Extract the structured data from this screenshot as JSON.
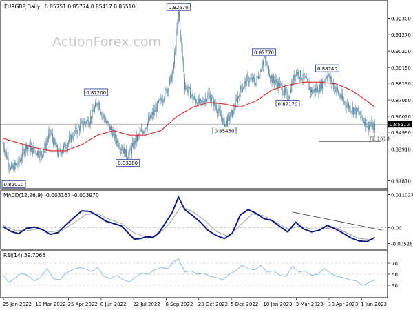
{
  "header": {
    "symbol": "EURGBP,Daily",
    "ohlc": "0.85751 0.85774 0.85417 0.85510"
  },
  "watermark": "ActionForex.com",
  "colors": {
    "candle": "#5b8aa6",
    "ma": "#e0302c",
    "macd_line": "#0a1a8a",
    "signal_line": "#9aa0b0",
    "rsi_line": "#7ab8e6",
    "trendline": "#333333",
    "fe_line": "#555555",
    "grid_dash": "#aaaaaa",
    "label_box": "#1a3a9c",
    "last_price_bg": "#000000"
  },
  "chart_data": [
    {
      "type": "candlestick",
      "title": "EURGBP,Daily",
      "ylim": [
        0.8145,
        0.933
      ],
      "yticks": [
        0.8187,
        0.8391,
        0.8499,
        0.8601,
        0.8706,
        0.8813,
        0.8915,
        0.902,
        0.9127,
        0.923
      ],
      "ytick_labels": [
        "0.81870",
        "0.83910",
        "0.84990",
        "0.86020",
        "0.87060",
        "0.88130",
        "0.89150",
        "0.90200",
        "0.91270",
        "0.92300"
      ],
      "last_price": 0.8551,
      "last_price_label": "0.85510",
      "ma_label": "",
      "price_path": [
        [
          0,
          0.843
        ],
        [
          10,
          0.826
        ],
        [
          20,
          0.83
        ],
        [
          30,
          0.842
        ],
        [
          40,
          0.838
        ],
        [
          50,
          0.836
        ],
        [
          60,
          0.85
        ],
        [
          70,
          0.836
        ],
        [
          80,
          0.842
        ],
        [
          90,
          0.849
        ],
        [
          100,
          0.855
        ],
        [
          110,
          0.858
        ],
        [
          120,
          0.87
        ],
        [
          125,
          0.862
        ],
        [
          130,
          0.857
        ],
        [
          140,
          0.848
        ],
        [
          150,
          0.84
        ],
        [
          158,
          0.8338
        ],
        [
          168,
          0.845
        ],
        [
          178,
          0.852
        ],
        [
          188,
          0.86
        ],
        [
          198,
          0.869
        ],
        [
          208,
          0.878
        ],
        [
          215,
          0.888
        ],
        [
          222,
          0.9267
        ],
        [
          230,
          0.88
        ],
        [
          240,
          0.872
        ],
        [
          250,
          0.868
        ],
        [
          260,
          0.874
        ],
        [
          270,
          0.866
        ],
        [
          280,
          0.8545
        ],
        [
          290,
          0.862
        ],
        [
          300,
          0.877
        ],
        [
          310,
          0.884
        ],
        [
          320,
          0.882
        ],
        [
          330,
          0.8977
        ],
        [
          340,
          0.884
        ],
        [
          350,
          0.88
        ],
        [
          360,
          0.8717
        ],
        [
          370,
          0.889
        ],
        [
          380,
          0.885
        ],
        [
          390,
          0.876
        ],
        [
          400,
          0.878
        ],
        [
          410,
          0.8874
        ],
        [
          420,
          0.878
        ],
        [
          430,
          0.87
        ],
        [
          440,
          0.865
        ],
        [
          450,
          0.862
        ],
        [
          460,
          0.855
        ],
        [
          470,
          0.853
        ]
      ],
      "ma_path": [
        [
          0,
          0.846
        ],
        [
          20,
          0.843
        ],
        [
          40,
          0.84
        ],
        [
          60,
          0.838
        ],
        [
          80,
          0.838
        ],
        [
          100,
          0.842
        ],
        [
          120,
          0.848
        ],
        [
          140,
          0.851
        ],
        [
          160,
          0.848
        ],
        [
          180,
          0.848
        ],
        [
          200,
          0.851
        ],
        [
          220,
          0.86
        ],
        [
          240,
          0.866
        ],
        [
          260,
          0.869
        ],
        [
          280,
          0.868
        ],
        [
          300,
          0.866
        ],
        [
          320,
          0.87
        ],
        [
          340,
          0.877
        ],
        [
          360,
          0.88
        ],
        [
          380,
          0.882
        ],
        [
          400,
          0.882
        ],
        [
          420,
          0.881
        ],
        [
          440,
          0.877
        ],
        [
          460,
          0.87
        ],
        [
          470,
          0.866
        ]
      ],
      "annotations": [
        {
          "label": "0.82010",
          "x": 8,
          "y": 0.8201,
          "anchor": "below"
        },
        {
          "label": "0.87200",
          "x": 118,
          "y": 0.872,
          "anchor": "above"
        },
        {
          "label": "0.83380",
          "x": 158,
          "y": 0.8338,
          "anchor": "below"
        },
        {
          "label": "0.92670",
          "x": 222,
          "y": 0.9267,
          "anchor": "above"
        },
        {
          "label": "0.85450",
          "x": 280,
          "y": 0.8545,
          "anchor": "below"
        },
        {
          "label": "0.89770",
          "x": 330,
          "y": 0.8977,
          "anchor": "above"
        },
        {
          "label": "0.87170",
          "x": 360,
          "y": 0.8717,
          "anchor": "below"
        },
        {
          "label": "0.88740",
          "x": 410,
          "y": 0.8874,
          "anchor": "above"
        }
      ],
      "fe_level": {
        "label": "FE 161.8",
        "value": 0.8439,
        "x_start": 400
      }
    },
    {
      "type": "line",
      "title": "MACD(12,26,9) -0.003167 -0.003970",
      "ylim": [
        -0.0065,
        0.0118
      ],
      "ytick_labels": [
        "0.011027",
        "0.00",
        "-0.005267"
      ],
      "yticks": [
        0.011027,
        0.0,
        -0.005267
      ],
      "series": [
        {
          "name": "",
          "points": [
            [
              0,
              0.0004
            ],
            [
              10,
              -0.0012
            ],
            [
              20,
              -0.002
            ],
            [
              30,
              -0.0002
            ],
            [
              40,
              0.0002
            ],
            [
              50,
              -0.0006
            ],
            [
              60,
              -0.0022
            ],
            [
              70,
              -0.0016
            ],
            [
              80,
              0.001
            ],
            [
              90,
              0.0034
            ],
            [
              100,
              0.0056
            ],
            [
              110,
              0.0054
            ],
            [
              120,
              0.004
            ],
            [
              130,
              0.0022
            ],
            [
              140,
              0.0014
            ],
            [
              150,
              0.0006
            ],
            [
              158,
              -0.0016
            ],
            [
              166,
              -0.0038
            ],
            [
              174,
              -0.0036
            ],
            [
              182,
              -0.003
            ],
            [
              190,
              -0.0032
            ],
            [
              198,
              -0.0014
            ],
            [
              206,
              0.0018
            ],
            [
              214,
              0.005
            ],
            [
              222,
              0.0102
            ],
            [
              230,
              0.006
            ],
            [
              240,
              0.004
            ],
            [
              250,
              0.0018
            ],
            [
              260,
              -0.001
            ],
            [
              270,
              -0.0026
            ],
            [
              280,
              -0.0036
            ],
            [
              290,
              -0.0018
            ],
            [
              300,
              0.0042
            ],
            [
              310,
              0.006
            ],
            [
              320,
              0.0048
            ],
            [
              330,
              0.003
            ],
            [
              340,
              0.0024
            ],
            [
              350,
              0.0004
            ],
            [
              360,
              -0.0014
            ],
            [
              370,
              0.0018
            ],
            [
              380,
              -0.0004
            ],
            [
              390,
              -0.0014
            ],
            [
              400,
              -0.0008
            ],
            [
              410,
              0.0008
            ],
            [
              420,
              -0.0004
            ],
            [
              430,
              -0.0018
            ],
            [
              440,
              -0.0034
            ],
            [
              450,
              -0.0044
            ],
            [
              460,
              -0.0046
            ],
            [
              470,
              -0.0032
            ]
          ]
        },
        {
          "name": "",
          "points": [
            [
              0,
              0.0008
            ],
            [
              15,
              -0.0008
            ],
            [
              30,
              -0.001
            ],
            [
              45,
              -0.0004
            ],
            [
              60,
              -0.0014
            ],
            [
              75,
              -0.0008
            ],
            [
              90,
              0.0016
            ],
            [
              105,
              0.0044
            ],
            [
              120,
              0.0046
            ],
            [
              135,
              0.0028
            ],
            [
              150,
              0.0014
            ],
            [
              165,
              -0.0016
            ],
            [
              180,
              -0.003
            ],
            [
              195,
              -0.0026
            ],
            [
              210,
              0.0012
            ],
            [
              225,
              0.007
            ],
            [
              240,
              0.0054
            ],
            [
              255,
              0.0024
            ],
            [
              270,
              -0.0012
            ],
            [
              285,
              -0.003
            ],
            [
              300,
              0.0008
            ],
            [
              315,
              0.0046
            ],
            [
              330,
              0.004
            ],
            [
              345,
              0.0018
            ],
            [
              360,
              -0.0004
            ],
            [
              375,
              0.0006
            ],
            [
              390,
              -0.0004
            ],
            [
              405,
              -0.0004
            ],
            [
              420,
              0.0002
            ],
            [
              435,
              -0.0018
            ],
            [
              450,
              -0.0036
            ],
            [
              470,
              -0.004
            ]
          ]
        }
      ],
      "trendline": [
        [
          366,
          0.0052
        ],
        [
          555,
          -0.0008
        ]
      ],
      "zero_dashed": true
    },
    {
      "type": "line",
      "title": "RSI(14) 39.7066",
      "ylim": [
        10,
        90
      ],
      "yticks": [
        70,
        50,
        30
      ],
      "ytick_labels": [
        "70",
        "50",
        "30"
      ],
      "series": [
        {
          "name": "",
          "points": [
            [
              0,
              48
            ],
            [
              8,
              35
            ],
            [
              16,
              44
            ],
            [
              24,
              52
            ],
            [
              32,
              47
            ],
            [
              40,
              38
            ],
            [
              48,
              45
            ],
            [
              56,
              60
            ],
            [
              64,
              42
            ],
            [
              72,
              40
            ],
            [
              80,
              52
            ],
            [
              88,
              58
            ],
            [
              96,
              62
            ],
            [
              104,
              60
            ],
            [
              112,
              55
            ],
            [
              120,
              62
            ],
            [
              128,
              46
            ],
            [
              136,
              42
            ],
            [
              144,
              48
            ],
            [
              152,
              40
            ],
            [
              160,
              36
            ],
            [
              168,
              45
            ],
            [
              176,
              52
            ],
            [
              184,
              50
            ],
            [
              192,
              58
            ],
            [
              200,
              62
            ],
            [
              208,
              60
            ],
            [
              216,
              72
            ],
            [
              222,
              78
            ],
            [
              230,
              54
            ],
            [
              238,
              56
            ],
            [
              246,
              50
            ],
            [
              254,
              52
            ],
            [
              262,
              46
            ],
            [
              270,
              44
            ],
            [
              278,
              40
            ],
            [
              286,
              50
            ],
            [
              294,
              56
            ],
            [
              302,
              66
            ],
            [
              310,
              60
            ],
            [
              318,
              58
            ],
            [
              326,
              66
            ],
            [
              334,
              54
            ],
            [
              342,
              56
            ],
            [
              350,
              48
            ],
            [
              358,
              46
            ],
            [
              366,
              64
            ],
            [
              374,
              54
            ],
            [
              382,
              56
            ],
            [
              390,
              48
            ],
            [
              398,
              50
            ],
            [
              406,
              60
            ],
            [
              414,
              52
            ],
            [
              422,
              46
            ],
            [
              430,
              44
            ],
            [
              438,
              40
            ],
            [
              446,
              38
            ],
            [
              454,
              30
            ],
            [
              462,
              34
            ],
            [
              470,
              40
            ]
          ]
        }
      ]
    }
  ],
  "x_axis": {
    "labels": [
      "25 Jan 2022",
      "10 Mar 2022",
      "25 Apr 2022",
      "8 Jun 2022",
      "22 Jul 2022",
      "6 Sep 2022",
      "20 Oct 2022",
      "5 Dec 2022",
      "18 Jan 2023",
      "3 Mar 2023",
      "18 Apr 2023",
      "1 Jun 2023"
    ]
  }
}
